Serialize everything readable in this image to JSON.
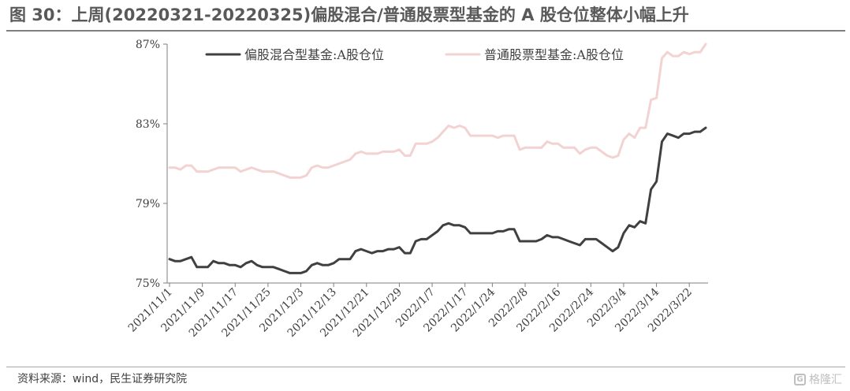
{
  "title": "图 30：上周(20220321-20220325)偏股混合/普通股票型基金的 A 股仓位整体小幅上升",
  "source": "资料来源：wind，民生证券研究院",
  "watermark": "格隆汇",
  "chart_data": {
    "type": "line",
    "title": "",
    "xlabel": "",
    "ylabel": "",
    "ylim": [
      75,
      87
    ],
    "yticks": [
      75,
      79,
      83,
      87
    ],
    "ytick_labels": [
      "75%",
      "79%",
      "83%",
      "87%"
    ],
    "x": [
      "2021/11/1",
      "2021/11/2",
      "2021/11/3",
      "2021/11/4",
      "2021/11/5",
      "2021/11/8",
      "2021/11/9",
      "2021/11/10",
      "2021/11/11",
      "2021/11/12",
      "2021/11/15",
      "2021/11/16",
      "2021/11/17",
      "2021/11/18",
      "2021/11/19",
      "2021/11/22",
      "2021/11/23",
      "2021/11/24",
      "2021/11/25",
      "2021/11/26",
      "2021/11/29",
      "2021/11/30",
      "2021/12/1",
      "2021/12/2",
      "2021/12/3",
      "2021/12/6",
      "2021/12/7",
      "2021/12/8",
      "2021/12/9",
      "2021/12/10",
      "2021/12/13",
      "2021/12/14",
      "2021/12/15",
      "2021/12/16",
      "2021/12/17",
      "2021/12/20",
      "2021/12/21",
      "2021/12/22",
      "2021/12/23",
      "2021/12/24",
      "2021/12/27",
      "2021/12/28",
      "2021/12/29",
      "2021/12/30",
      "2021/12/31",
      "2022/1/4",
      "2022/1/5",
      "2022/1/6",
      "2022/1/7",
      "2022/1/10",
      "2022/1/11",
      "2022/1/12",
      "2022/1/13",
      "2022/1/14",
      "2022/1/17",
      "2022/1/18",
      "2022/1/19",
      "2022/1/20",
      "2022/1/21",
      "2022/1/24",
      "2022/1/25",
      "2022/1/26",
      "2022/1/27",
      "2022/1/28",
      "2022/2/7",
      "2022/2/8",
      "2022/2/9",
      "2022/2/10",
      "2022/2/11",
      "2022/2/14",
      "2022/2/15",
      "2022/2/16",
      "2022/2/17",
      "2022/2/18",
      "2022/2/21",
      "2022/2/22",
      "2022/2/23",
      "2022/2/24",
      "2022/2/25",
      "2022/2/28",
      "2022/3/1",
      "2022/3/2",
      "2022/3/3",
      "2022/3/4",
      "2022/3/7",
      "2022/3/8",
      "2022/3/9",
      "2022/3/10",
      "2022/3/11",
      "2022/3/14",
      "2022/3/15",
      "2022/3/16",
      "2022/3/17",
      "2022/3/18",
      "2022/3/21",
      "2022/3/22",
      "2022/3/23",
      "2022/3/24",
      "2022/3/25"
    ],
    "xtick_labels": [
      "2021/11/1",
      "2021/11/9",
      "2021/11/17",
      "2021/11/25",
      "2021/12/3",
      "2021/12/13",
      "2021/12/21",
      "2021/12/29",
      "2022/1/7",
      "2022/1/17",
      "2022/1/24",
      "2022/2/8",
      "2022/2/16",
      "2022/2/24",
      "2022/3/4",
      "2022/3/14",
      "2022/3/22"
    ],
    "legend": "top",
    "grid": false,
    "series": [
      {
        "name": "偏股混合型基金:A股仓位",
        "color": "#404040",
        "values": [
          76.2,
          76.1,
          76.1,
          76.2,
          76.3,
          75.8,
          75.8,
          75.8,
          76.1,
          76.0,
          76.0,
          75.9,
          75.9,
          75.8,
          76.0,
          76.1,
          75.9,
          75.8,
          75.8,
          75.8,
          75.7,
          75.6,
          75.5,
          75.5,
          75.5,
          75.6,
          75.9,
          76.0,
          75.9,
          75.9,
          76.0,
          76.2,
          76.2,
          76.2,
          76.6,
          76.7,
          76.6,
          76.5,
          76.6,
          76.6,
          76.7,
          76.7,
          76.8,
          76.5,
          76.5,
          77.1,
          77.2,
          77.2,
          77.4,
          77.6,
          77.9,
          78.0,
          77.9,
          77.9,
          77.8,
          77.5,
          77.5,
          77.5,
          77.5,
          77.5,
          77.6,
          77.6,
          77.7,
          77.7,
          77.1,
          77.1,
          77.1,
          77.1,
          77.2,
          77.4,
          77.3,
          77.3,
          77.2,
          77.1,
          77.0,
          76.9,
          77.2,
          77.2,
          77.2,
          77.0,
          76.8,
          76.6,
          76.8,
          77.5,
          77.9,
          77.8,
          78.1,
          78.0,
          79.7,
          80.1,
          82.1,
          82.5,
          82.4,
          82.3,
          82.5,
          82.5,
          82.6,
          82.6,
          82.8
        ]
      },
      {
        "name": "普通股票型基金:A股仓位",
        "color": "#f3d2d2",
        "values": [
          80.8,
          80.8,
          80.7,
          80.9,
          80.9,
          80.6,
          80.6,
          80.6,
          80.7,
          80.8,
          80.8,
          80.8,
          80.8,
          80.6,
          80.7,
          80.8,
          80.7,
          80.6,
          80.6,
          80.6,
          80.5,
          80.4,
          80.3,
          80.3,
          80.3,
          80.4,
          80.8,
          80.9,
          80.8,
          80.8,
          80.9,
          81.0,
          81.1,
          81.2,
          81.5,
          81.6,
          81.5,
          81.5,
          81.5,
          81.6,
          81.6,
          81.6,
          81.7,
          81.4,
          81.4,
          82.0,
          82.0,
          82.0,
          82.1,
          82.3,
          82.6,
          82.9,
          82.8,
          82.9,
          82.8,
          82.4,
          82.4,
          82.4,
          82.4,
          82.4,
          82.3,
          82.4,
          82.4,
          82.4,
          81.7,
          81.8,
          81.8,
          81.8,
          81.8,
          82.1,
          82.0,
          82.0,
          81.8,
          81.8,
          81.8,
          81.5,
          81.7,
          81.8,
          81.8,
          81.6,
          81.4,
          81.3,
          81.4,
          82.2,
          82.5,
          82.3,
          82.8,
          82.8,
          84.2,
          84.3,
          86.3,
          86.6,
          86.4,
          86.4,
          86.6,
          86.5,
          86.6,
          86.6,
          87.0
        ]
      }
    ]
  }
}
